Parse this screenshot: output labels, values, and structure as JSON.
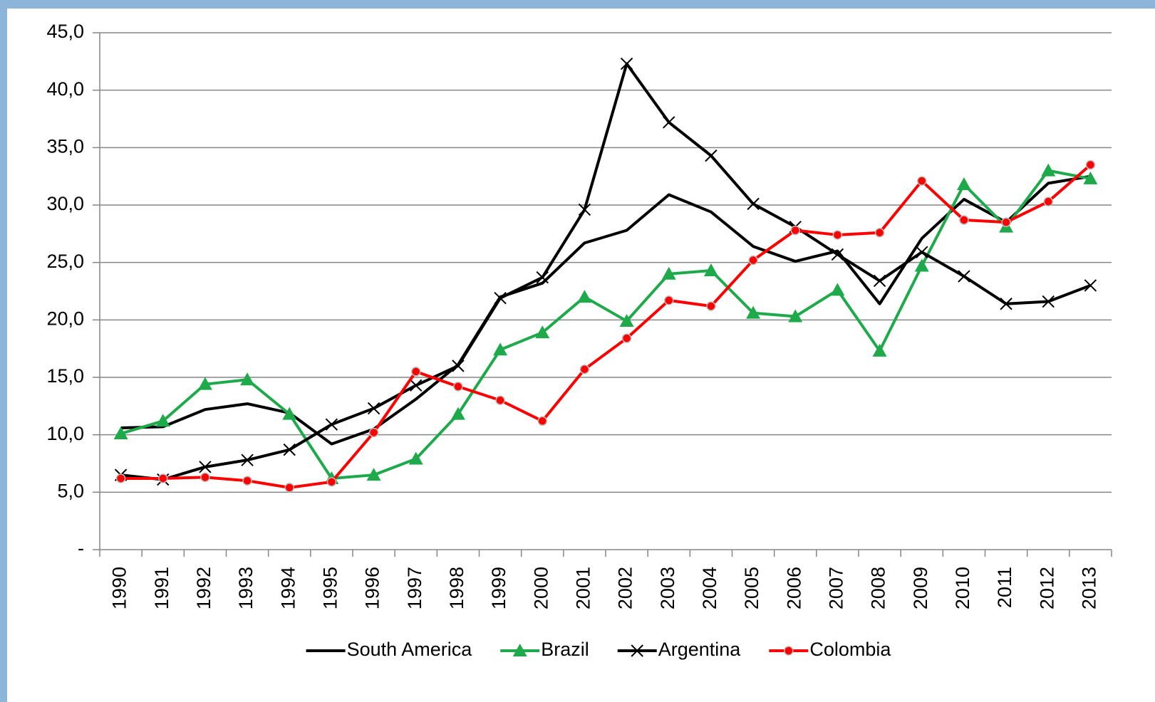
{
  "chart_data": {
    "type": "line",
    "categories": [
      "1990",
      "1991",
      "1992",
      "1993",
      "1994",
      "1995",
      "1996",
      "1997",
      "1998",
      "1999",
      "2000",
      "2001",
      "2002",
      "2003",
      "2004",
      "2005",
      "2006",
      "2007",
      "2008",
      "2009",
      "2010",
      "2011",
      "2012",
      "2013"
    ],
    "series": [
      {
        "name": "South America",
        "color": "#000000",
        "marker": "none",
        "values": [
          10.6,
          10.7,
          12.2,
          12.7,
          11.9,
          9.2,
          10.5,
          13.1,
          16.1,
          22.0,
          23.2,
          26.7,
          27.8,
          30.9,
          29.4,
          26.4,
          25.1,
          26.0,
          21.4,
          27.1,
          30.5,
          28.5,
          31.9,
          32.5
        ]
      },
      {
        "name": "Brazil",
        "color": "#1eaa4b",
        "marker": "triangle",
        "values": [
          10.1,
          11.2,
          14.4,
          14.8,
          11.8,
          6.2,
          6.5,
          7.9,
          11.8,
          17.4,
          18.9,
          22.0,
          19.9,
          24.0,
          24.3,
          20.6,
          20.3,
          22.6,
          17.3,
          24.7,
          31.8,
          28.1,
          33.0,
          32.3
        ]
      },
      {
        "name": "Argentina",
        "color": "#000000",
        "marker": "x",
        "values": [
          6.5,
          6.1,
          7.2,
          7.8,
          8.7,
          10.9,
          12.3,
          14.3,
          16.0,
          21.9,
          23.7,
          29.6,
          42.3,
          37.2,
          34.3,
          30.1,
          28.1,
          25.7,
          23.4,
          25.9,
          23.8,
          21.4,
          21.6,
          23.0
        ]
      },
      {
        "name": "Colombia",
        "color": "#ff0000",
        "marker": "circle",
        "values": [
          6.2,
          6.2,
          6.3,
          6.0,
          5.4,
          5.9,
          10.2,
          15.5,
          14.2,
          13.0,
          11.2,
          15.7,
          18.4,
          21.7,
          21.2,
          25.2,
          27.8,
          27.4,
          27.6,
          32.1,
          28.7,
          28.5,
          30.3,
          33.5
        ]
      }
    ],
    "ylim": [
      0,
      45
    ],
    "yticks": [
      {
        "value": 0,
        "label": "-"
      },
      {
        "value": 5,
        "label": "5,0"
      },
      {
        "value": 10,
        "label": "10,0"
      },
      {
        "value": 15,
        "label": "15,0"
      },
      {
        "value": 20,
        "label": "20,0"
      },
      {
        "value": 25,
        "label": "25,0"
      },
      {
        "value": 30,
        "label": "30,0"
      },
      {
        "value": 35,
        "label": "35,0"
      },
      {
        "value": 40,
        "label": "40,0"
      },
      {
        "value": 45,
        "label": "45,0"
      }
    ],
    "grid": true,
    "legend": "bottom"
  }
}
